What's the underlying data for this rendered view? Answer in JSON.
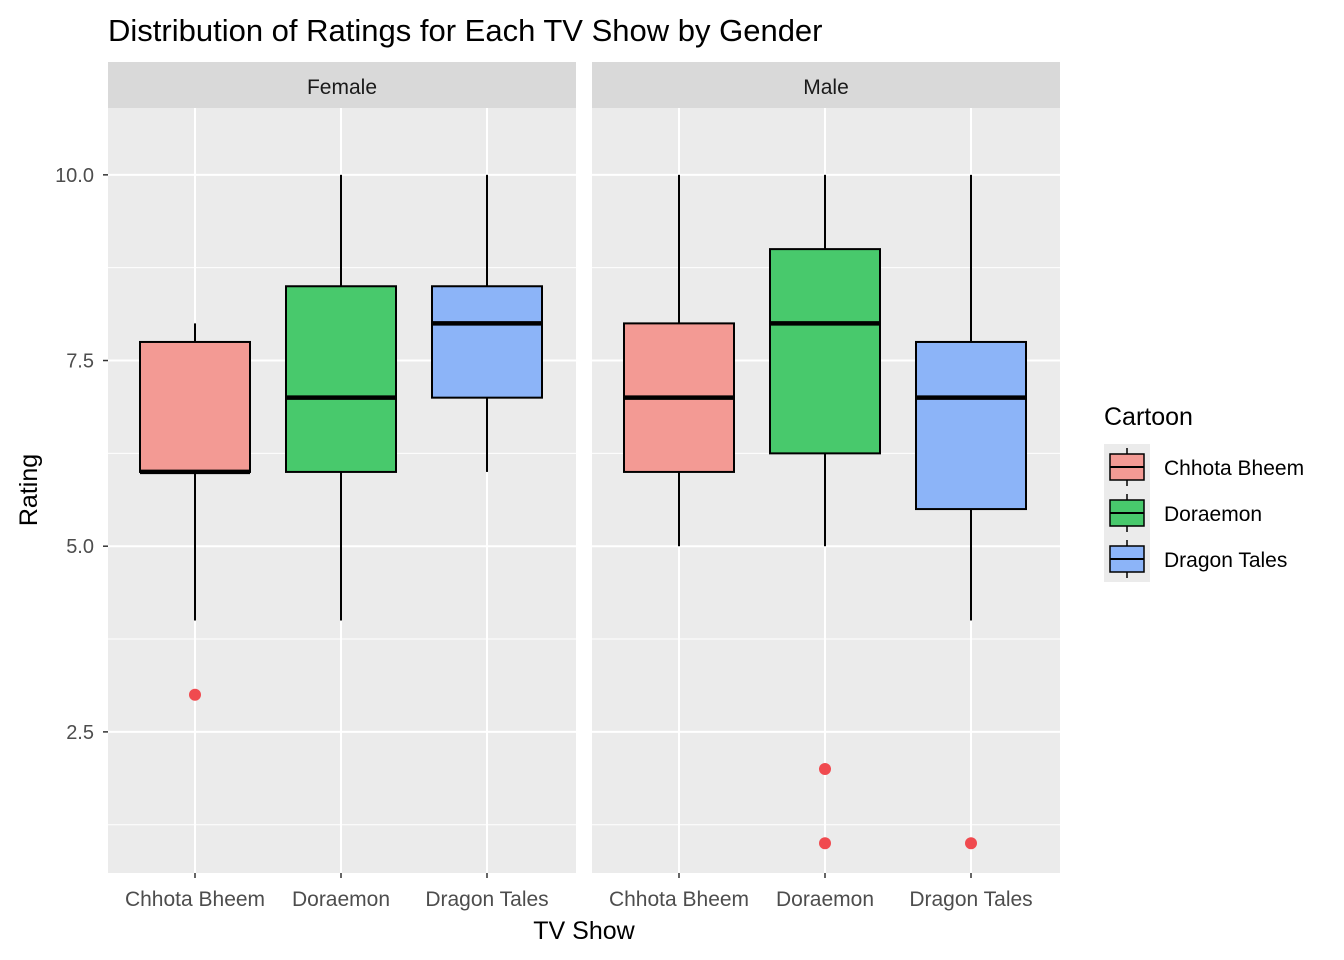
{
  "chart_data": {
    "type": "boxplot",
    "title": "Distribution of Ratings for Each TV Show by Gender",
    "xlabel": "TV Show",
    "ylabel": "Rating",
    "ylim": [
      0.6,
      10.9
    ],
    "yticks": [
      2.5,
      5.0,
      7.5,
      10.0
    ],
    "ytick_labels": [
      "2.5",
      "5.0",
      "7.5",
      "10.0"
    ],
    "yminor": [
      1.25,
      3.75,
      6.25,
      8.75
    ],
    "categories": [
      "Chhota Bheem",
      "Doraemon",
      "Dragon Tales"
    ],
    "legend": {
      "title": "Cartoon",
      "position": "right",
      "entries": [
        "Chhota Bheem",
        "Doraemon",
        "Dragon Tales"
      ]
    },
    "colors": {
      "Chhota Bheem": "#f39a94",
      "Doraemon": "#48c96c",
      "Dragon Tales": "#8cb4f8",
      "outlier": "#f04a4f",
      "panel_bg": "#ebebeb",
      "strip_bg": "#d9d9d9",
      "grid": "#ffffff"
    },
    "facets": [
      {
        "label": "Female",
        "boxes": [
          {
            "category": "Chhota Bheem",
            "lower_whisker": 4,
            "q1": 6,
            "median": 6,
            "q3": 7.75,
            "upper_whisker": 8,
            "outliers": [
              3
            ]
          },
          {
            "category": "Doraemon",
            "lower_whisker": 4,
            "q1": 6,
            "median": 7,
            "q3": 8.5,
            "upper_whisker": 10,
            "outliers": []
          },
          {
            "category": "Dragon Tales",
            "lower_whisker": 6,
            "q1": 7,
            "median": 8,
            "q3": 8.5,
            "upper_whisker": 10,
            "outliers": []
          }
        ]
      },
      {
        "label": "Male",
        "boxes": [
          {
            "category": "Chhota Bheem",
            "lower_whisker": 5,
            "q1": 6,
            "median": 7,
            "q3": 8,
            "upper_whisker": 10,
            "outliers": []
          },
          {
            "category": "Doraemon",
            "lower_whisker": 5,
            "q1": 6.25,
            "median": 8,
            "q3": 9,
            "upper_whisker": 10,
            "outliers": [
              2,
              1
            ]
          },
          {
            "category": "Dragon Tales",
            "lower_whisker": 4,
            "q1": 5.5,
            "median": 7,
            "q3": 7.75,
            "upper_whisker": 10,
            "outliers": [
              1
            ]
          }
        ]
      }
    ]
  }
}
